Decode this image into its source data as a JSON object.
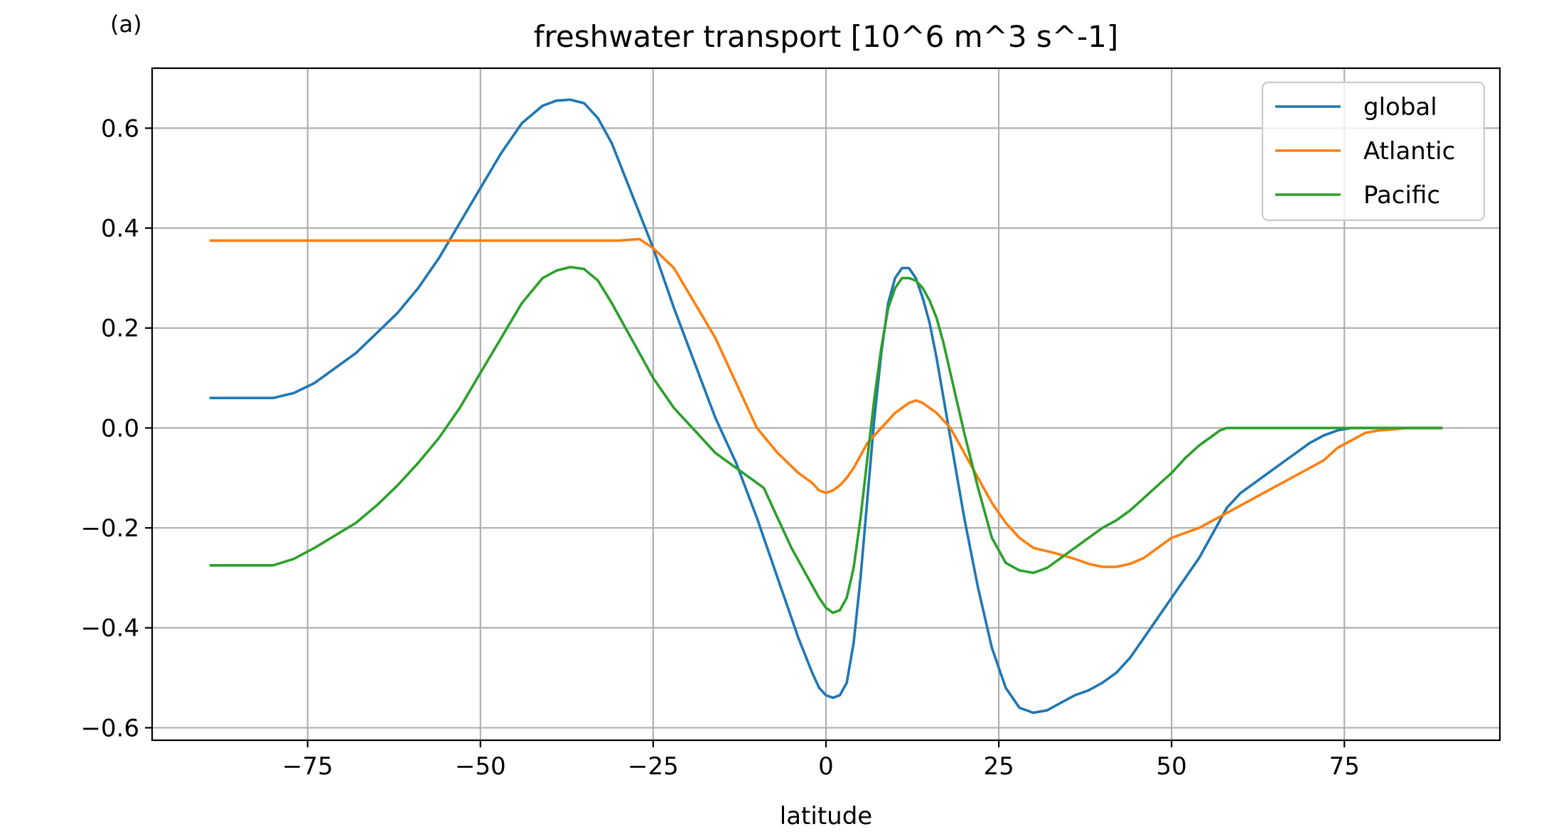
{
  "panel_label": "(a)",
  "chart_data": {
    "type": "line",
    "title": "freshwater transport [10^6 m^3 s^-1]",
    "xlabel": "latitude",
    "ylabel": "",
    "xlim": [
      -97.5,
      97.5
    ],
    "ylim": [
      -0.625,
      0.72
    ],
    "xticks": [
      -75,
      -50,
      -25,
      0,
      25,
      50,
      75
    ],
    "xtick_labels": [
      "−75",
      "−50",
      "−25",
      "0",
      "25",
      "50",
      "75"
    ],
    "yticks": [
      -0.6,
      -0.4,
      -0.2,
      0.0,
      0.2,
      0.4,
      0.6
    ],
    "ytick_labels": [
      "−0.6",
      "−0.4",
      "−0.2",
      "0.0",
      "0.2",
      "0.4",
      "0.6"
    ],
    "grid": true,
    "legend_position": "upper right",
    "series": [
      {
        "name": "global",
        "color": "#1f77b4",
        "x": [
          -89,
          -86,
          -83,
          -80,
          -77,
          -74,
          -71,
          -68,
          -65,
          -62,
          -59,
          -56,
          -53,
          -50,
          -47,
          -44,
          -41,
          -39,
          -37,
          -35,
          -33,
          -31,
          -29,
          -27,
          -25,
          -22,
          -19,
          -16,
          -13,
          -10,
          -7,
          -4,
          -2,
          -1,
          0,
          1,
          2,
          3,
          4,
          5,
          6,
          7,
          8,
          9,
          10,
          11,
          12,
          13,
          14,
          15,
          16,
          17,
          18,
          19,
          20,
          22,
          24,
          26,
          28,
          30,
          32,
          34,
          36,
          38,
          40,
          42,
          44,
          46,
          48,
          50,
          52,
          54,
          56,
          58,
          60,
          62,
          64,
          66,
          68,
          70,
          72,
          74,
          76,
          78,
          80,
          82,
          84,
          86,
          89
        ],
        "y": [
          0.06,
          0.06,
          0.06,
          0.06,
          0.07,
          0.09,
          0.12,
          0.15,
          0.19,
          0.23,
          0.28,
          0.34,
          0.41,
          0.48,
          0.55,
          0.61,
          0.645,
          0.655,
          0.657,
          0.65,
          0.62,
          0.57,
          0.5,
          0.43,
          0.36,
          0.24,
          0.13,
          0.02,
          -0.07,
          -0.18,
          -0.3,
          -0.42,
          -0.49,
          -0.52,
          -0.535,
          -0.54,
          -0.535,
          -0.51,
          -0.43,
          -0.3,
          -0.14,
          0.02,
          0.15,
          0.25,
          0.3,
          0.32,
          0.32,
          0.3,
          0.26,
          0.21,
          0.14,
          0.06,
          -0.02,
          -0.1,
          -0.18,
          -0.32,
          -0.44,
          -0.52,
          -0.56,
          -0.57,
          -0.565,
          -0.55,
          -0.535,
          -0.525,
          -0.51,
          -0.49,
          -0.46,
          -0.42,
          -0.38,
          -0.34,
          -0.3,
          -0.26,
          -0.21,
          -0.16,
          -0.13,
          -0.11,
          -0.09,
          -0.07,
          -0.05,
          -0.03,
          -0.015,
          -0.005,
          0.0,
          0.0,
          0.0,
          0.0,
          0.0,
          0.0,
          0.0
        ]
      },
      {
        "name": "Atlantic",
        "color": "#ff7f0e",
        "x": [
          -89,
          -80,
          -70,
          -60,
          -50,
          -40,
          -30,
          -27,
          -25,
          -22,
          -19,
          -16,
          -13,
          -10,
          -7,
          -4,
          -2,
          -1,
          0,
          1,
          2,
          3,
          4,
          5,
          6,
          8,
          10,
          12,
          13,
          14,
          16,
          18,
          20,
          22,
          24,
          26,
          28,
          30,
          33,
          36,
          38,
          40,
          42,
          44,
          46,
          48,
          50,
          52,
          54,
          56,
          58,
          60,
          62,
          64,
          66,
          68,
          70,
          72,
          74,
          76,
          78,
          80,
          82,
          84,
          86,
          89
        ],
        "y": [
          0.375,
          0.375,
          0.375,
          0.375,
          0.375,
          0.375,
          0.375,
          0.378,
          0.36,
          0.32,
          0.25,
          0.18,
          0.09,
          0.0,
          -0.05,
          -0.09,
          -0.11,
          -0.125,
          -0.13,
          -0.125,
          -0.115,
          -0.1,
          -0.08,
          -0.055,
          -0.03,
          0.0,
          0.03,
          0.05,
          0.055,
          0.05,
          0.03,
          0.0,
          -0.05,
          -0.1,
          -0.15,
          -0.19,
          -0.22,
          -0.24,
          -0.25,
          -0.262,
          -0.272,
          -0.278,
          -0.278,
          -0.272,
          -0.26,
          -0.24,
          -0.22,
          -0.21,
          -0.2,
          -0.185,
          -0.17,
          -0.155,
          -0.14,
          -0.125,
          -0.11,
          -0.095,
          -0.08,
          -0.065,
          -0.04,
          -0.025,
          -0.01,
          -0.005,
          -0.003,
          0.0,
          0.0,
          0.0
        ]
      },
      {
        "name": "Pacific",
        "color": "#2ca02c",
        "x": [
          -89,
          -86,
          -83,
          -80,
          -77,
          -74,
          -71,
          -68,
          -65,
          -62,
          -59,
          -56,
          -53,
          -50,
          -47,
          -44,
          -41,
          -39,
          -37,
          -35,
          -33,
          -31,
          -29,
          -27,
          -25,
          -22,
          -19,
          -16,
          -13,
          -11,
          -9,
          -7,
          -5,
          -3,
          -1,
          0,
          1,
          2,
          3,
          4,
          5,
          6,
          7,
          8,
          9,
          10,
          11,
          12,
          13,
          14,
          15,
          16,
          17,
          18,
          19,
          20,
          22,
          24,
          26,
          28,
          30,
          32,
          34,
          36,
          38,
          40,
          42,
          44,
          46,
          48,
          50,
          52,
          54,
          56,
          57,
          58,
          60,
          62,
          65,
          70,
          75,
          80,
          85,
          89
        ],
        "y": [
          -0.275,
          -0.275,
          -0.275,
          -0.275,
          -0.262,
          -0.24,
          -0.215,
          -0.19,
          -0.155,
          -0.115,
          -0.07,
          -0.02,
          0.04,
          0.11,
          0.18,
          0.25,
          0.3,
          0.315,
          0.322,
          0.318,
          0.295,
          0.25,
          0.2,
          0.15,
          0.1,
          0.04,
          -0.005,
          -0.05,
          -0.08,
          -0.1,
          -0.12,
          -0.18,
          -0.24,
          -0.29,
          -0.34,
          -0.36,
          -0.37,
          -0.365,
          -0.34,
          -0.28,
          -0.18,
          -0.06,
          0.06,
          0.16,
          0.24,
          0.28,
          0.3,
          0.3,
          0.295,
          0.28,
          0.255,
          0.22,
          0.17,
          0.11,
          0.05,
          -0.01,
          -0.12,
          -0.22,
          -0.27,
          -0.285,
          -0.29,
          -0.28,
          -0.26,
          -0.24,
          -0.22,
          -0.2,
          -0.185,
          -0.165,
          -0.14,
          -0.115,
          -0.09,
          -0.06,
          -0.035,
          -0.015,
          -0.005,
          0.0,
          0.0,
          0.0,
          0.0,
          0.0,
          0.0,
          0.0,
          0.0,
          0.0
        ]
      }
    ]
  }
}
